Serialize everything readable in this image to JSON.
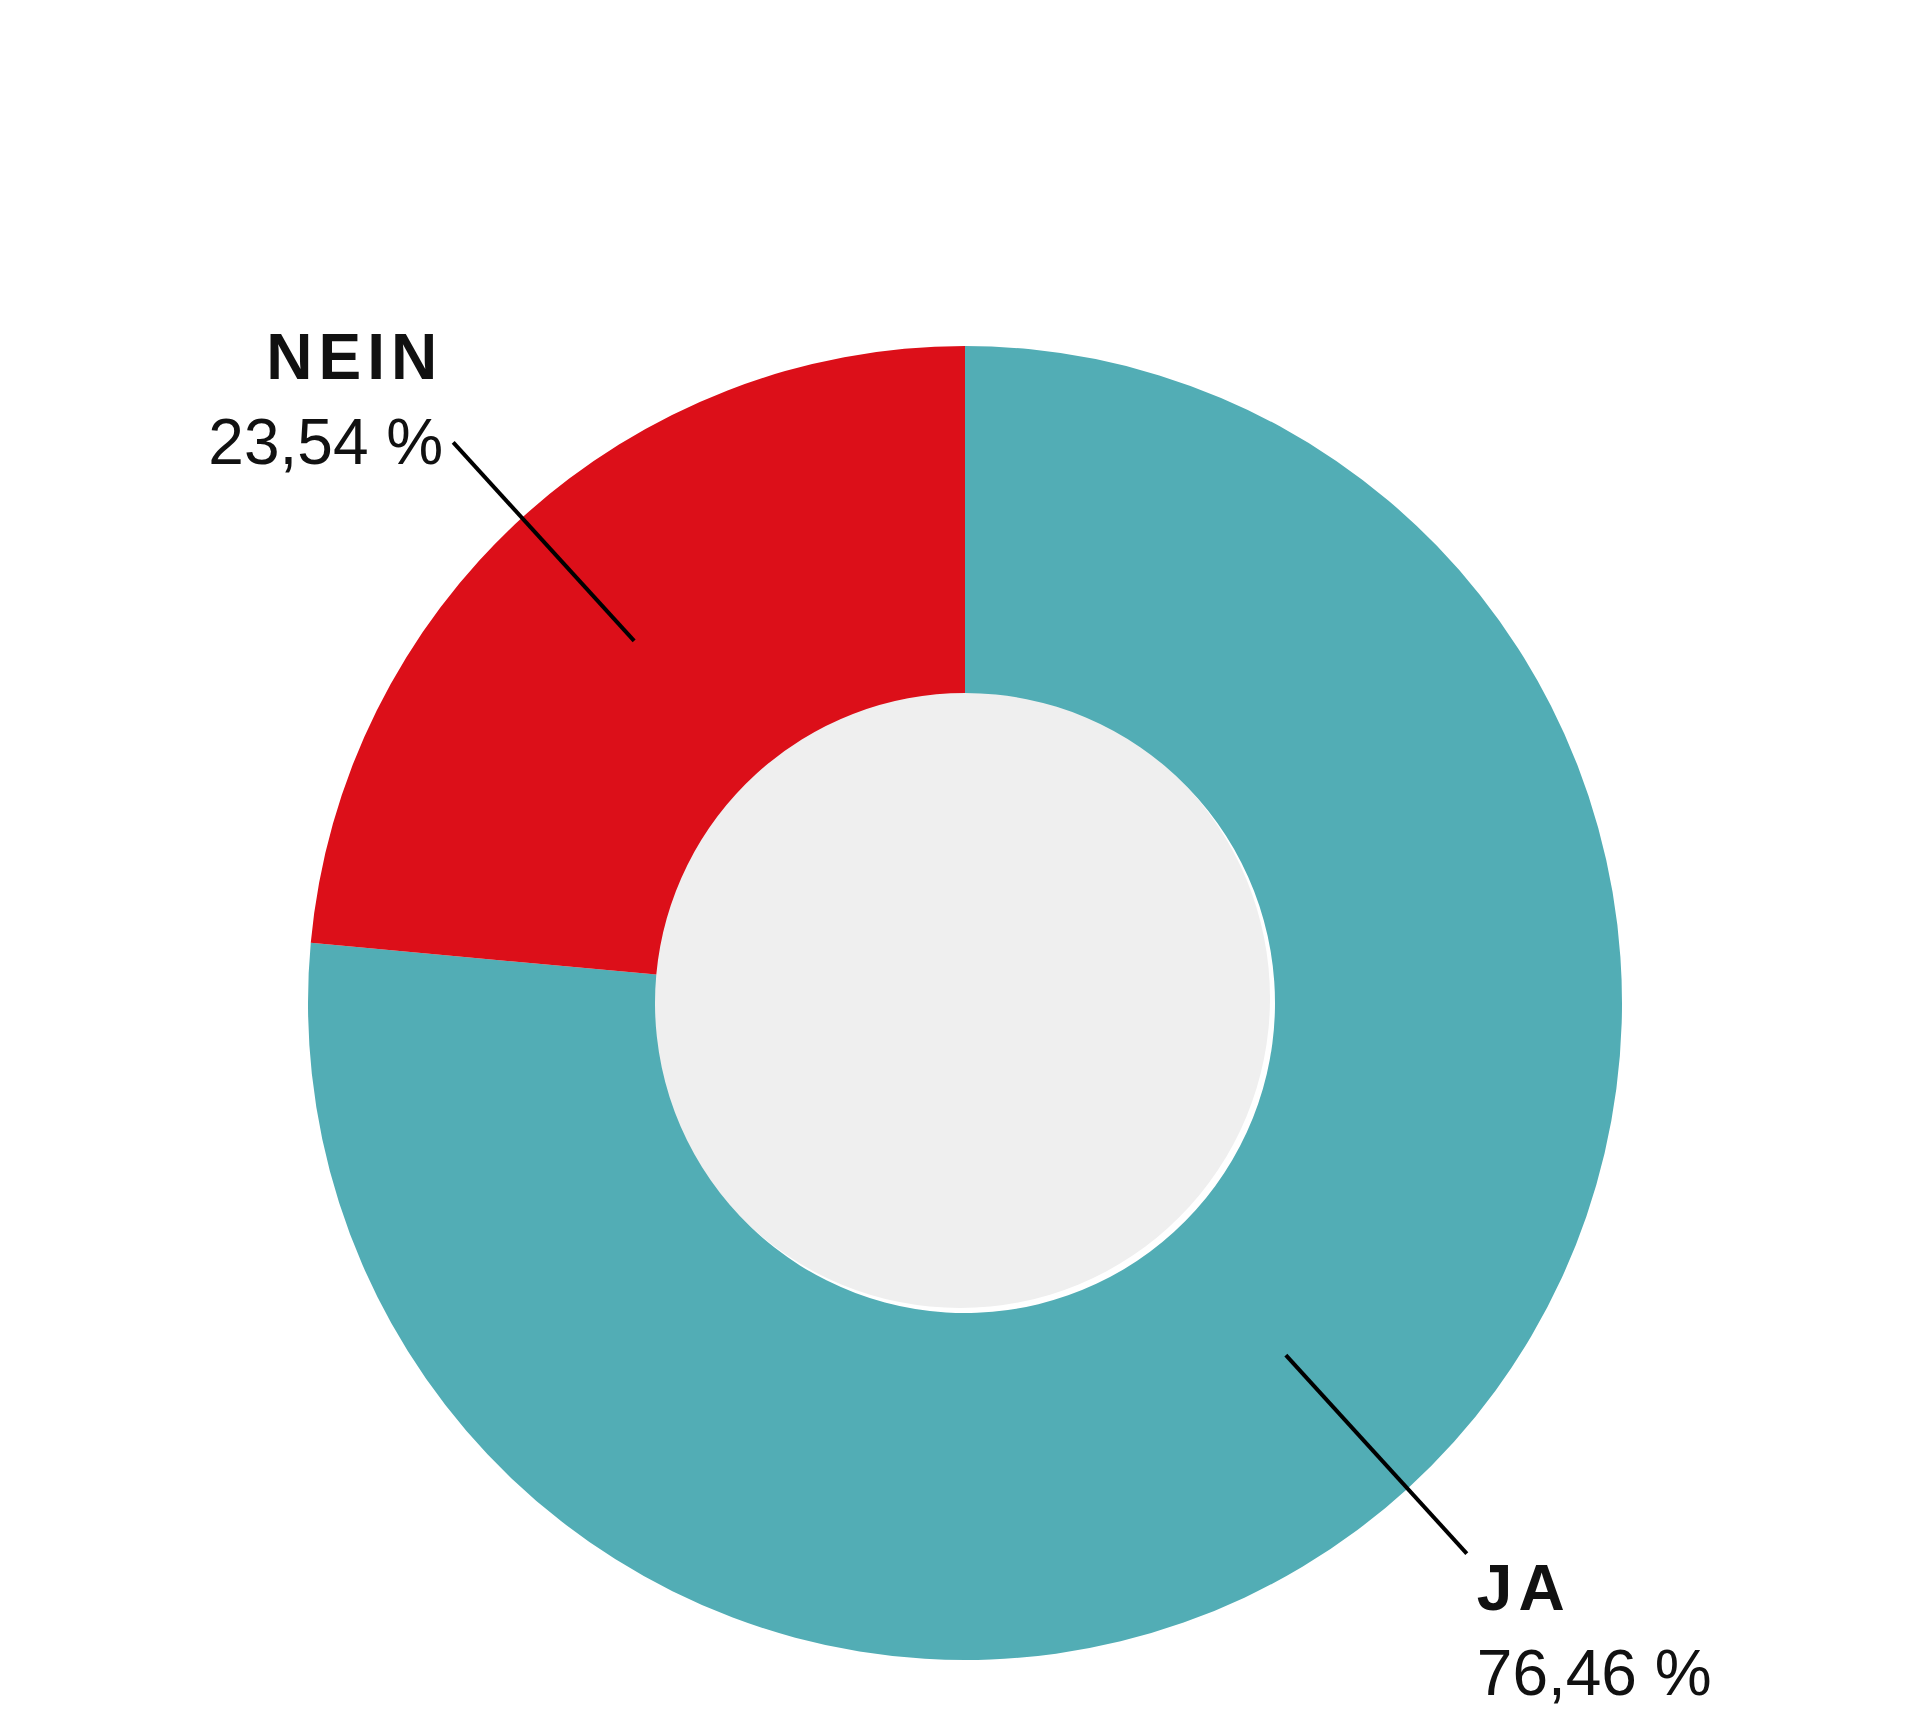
{
  "chart_data": {
    "type": "donut",
    "categories": [
      "JA",
      "NEIN"
    ],
    "values": [
      76.46,
      23.54
    ],
    "value_labels": [
      "76,46 %",
      "23,54 %"
    ],
    "colors": [
      "#52adb5",
      "#dc0f19"
    ],
    "legend": false
  }
}
